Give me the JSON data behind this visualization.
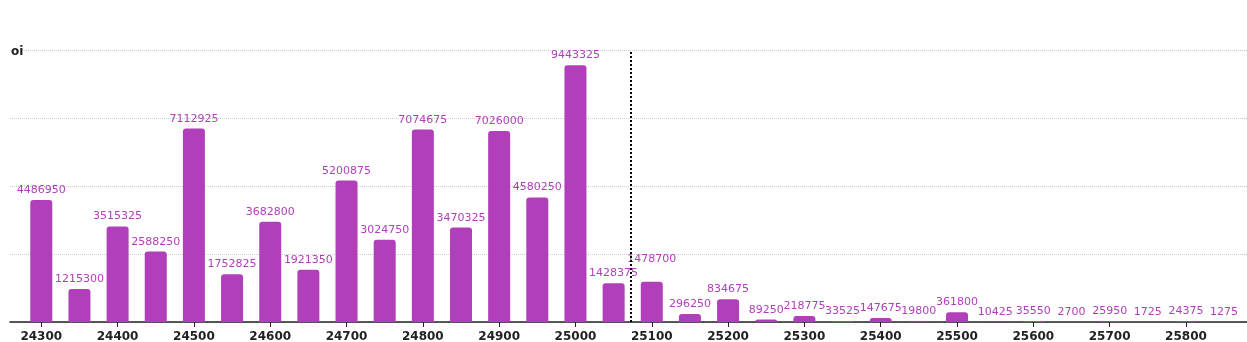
{
  "chart_data": {
    "type": "bar",
    "ylabel": "oi",
    "x": [
      24300,
      24350,
      24400,
      24450,
      24500,
      24550,
      24600,
      24650,
      24700,
      24750,
      24800,
      24850,
      24900,
      24950,
      25000,
      25050,
      25100,
      25150,
      25200,
      25250,
      25300,
      25350,
      25400,
      25450,
      25500,
      25550,
      25600,
      25650,
      25700,
      25750,
      25800,
      25850
    ],
    "values": [
      4486950,
      1215300,
      3515325,
      2588250,
      7112925,
      1752825,
      3682800,
      1921350,
      5200875,
      3024750,
      7074675,
      3470325,
      7026000,
      4580250,
      9443325,
      1428375,
      1478700,
      296250,
      834675,
      89250,
      218775,
      33525,
      147675,
      19800,
      361800,
      10425,
      35550,
      2700,
      25950,
      1725,
      24375,
      1275
    ],
    "color": "#b03fb9",
    "xlim": [
      24259,
      25880
    ],
    "xticks": [
      24300,
      24400,
      24500,
      24600,
      24700,
      24800,
      24900,
      25000,
      25100,
      25200,
      25300,
      25400,
      25500,
      25600,
      25700,
      25800
    ],
    "ylim": [
      0,
      10000000
    ],
    "yticks": [
      {
        "value": 0,
        "label": null
      },
      {
        "value": 2500000,
        "label": null
      },
      {
        "value": 5000000,
        "label": null
      },
      {
        "value": 7500000,
        "label": null
      },
      {
        "value": 10000000,
        "label": null
      }
    ],
    "tick_labels": "x",
    "grid": "y",
    "data_labels": true,
    "ref_lines": [
      {
        "axis": "x",
        "value": 25072,
        "color": "#000000",
        "line_style": "dotted"
      }
    ]
  }
}
